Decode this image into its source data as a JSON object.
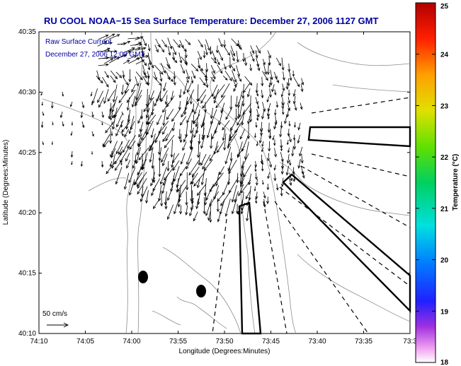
{
  "chart_data": {
    "type": "map",
    "title": "RU COOL  NOAA−15  Sea Surface Temperature:  December 27, 2006 1127 GMT",
    "annotation_lines": [
      "Raw Surface Current",
      "December 27, 2006 12:00 GMT"
    ],
    "xlabel": "Longitude (Degrees:Minutes)",
    "ylabel": "Latitude (Degrees:Minutes)",
    "x_ticks": [
      "74:10",
      "74:05",
      "74:00",
      "73:55",
      "73:50",
      "73:45",
      "73:40",
      "73:35",
      "73:3"
    ],
    "y_ticks": [
      "40:10",
      "40:15",
      "40:20",
      "40:25",
      "40:30",
      "40:35"
    ],
    "colorbar": {
      "label": "Temperature (°C)",
      "ticks": [
        "18",
        "19",
        "20",
        "21",
        "22",
        "23",
        "24",
        "25"
      ],
      "range": [
        18,
        25
      ]
    },
    "scale_arrow_label": "50 cm/s",
    "colors": {
      "title": "#0000a0",
      "contour": "#8c8c8c",
      "arrow": "#000000"
    }
  }
}
